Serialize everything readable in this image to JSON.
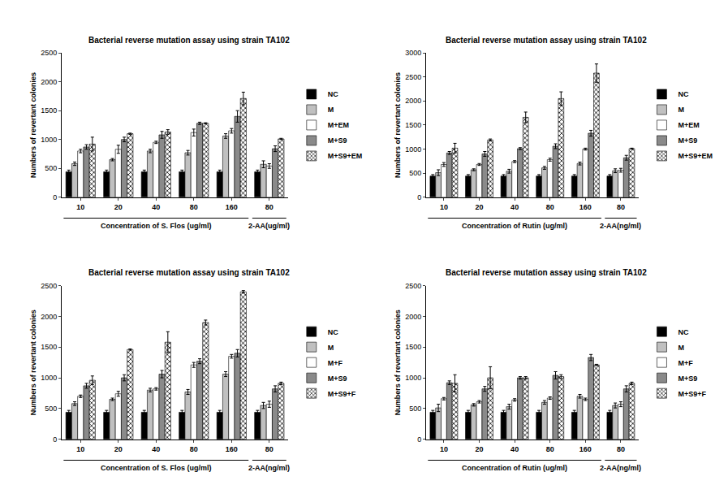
{
  "chart_data": [
    {
      "type": "bar",
      "title": "Bacterial reverse mutation assay using strain TA102",
      "ylabel": "Numbers of revertant colonies",
      "categories": [
        "10",
        "20",
        "40",
        "80",
        "160",
        "80"
      ],
      "x_groups": [
        {
          "label": "Concentration of S. Flos (ug/ml)",
          "count": 5
        },
        {
          "label": "2-AA(ug/ml)",
          "count": 1
        }
      ],
      "ylim": [
        0,
        2500
      ],
      "yticks": [
        0,
        500,
        1000,
        1500,
        2000,
        2500
      ],
      "series": [
        {
          "name": "NC",
          "color": "#000000",
          "values": [
            440,
            440,
            440,
            440,
            440,
            440
          ],
          "errors": [
            30,
            30,
            30,
            30,
            30,
            30
          ]
        },
        {
          "name": "M",
          "color": "#c0c0c0",
          "values": [
            580,
            650,
            800,
            770,
            1060,
            570
          ],
          "errors": [
            30,
            20,
            30,
            40,
            40,
            60
          ]
        },
        {
          "name": "M+EM",
          "color": "#ffffff",
          "values": [
            800,
            830,
            950,
            1120,
            1150,
            540
          ],
          "errors": [
            30,
            70,
            20,
            60,
            40,
            40
          ]
        },
        {
          "name": "M+S9",
          "color": "#8a8a8a",
          "values": [
            870,
            1000,
            1080,
            1280,
            1400,
            840
          ],
          "errors": [
            40,
            40,
            60,
            20,
            100,
            50
          ]
        },
        {
          "name": "M+S9+EM",
          "color": "#ffffff",
          "marker": "crosshatch",
          "values": [
            920,
            1100,
            1130,
            1280,
            1710,
            1010
          ],
          "errors": [
            120,
            10,
            40,
            10,
            110,
            10
          ]
        }
      ]
    },
    {
      "type": "bar",
      "title": "Bacterial reverse mutation assay using strain TA102",
      "ylabel": "Numbers of revertant colonies",
      "categories": [
        "10",
        "20",
        "40",
        "80",
        "160",
        "80"
      ],
      "x_groups": [
        {
          "label": "Concentration of Rutin (ug/ml)",
          "count": 5
        },
        {
          "label": "2-AA(ng/ml)",
          "count": 1
        }
      ],
      "ylim": [
        0,
        3000
      ],
      "yticks": [
        0,
        500,
        1000,
        1500,
        2000,
        2500,
        3000
      ],
      "series": [
        {
          "name": "NC",
          "color": "#000000",
          "values": [
            440,
            440,
            440,
            440,
            440,
            440
          ],
          "errors": [
            30,
            30,
            30,
            30,
            30,
            30
          ]
        },
        {
          "name": "M",
          "color": "#c0c0c0",
          "values": [
            510,
            570,
            540,
            610,
            700,
            550
          ],
          "errors": [
            60,
            20,
            40,
            30,
            30,
            40
          ]
        },
        {
          "name": "M+EM",
          "color": "#ffffff",
          "values": [
            680,
            680,
            740,
            780,
            1000,
            560
          ],
          "errors": [
            40,
            20,
            20,
            30,
            20,
            40
          ]
        },
        {
          "name": "M+S9",
          "color": "#8a8a8a",
          "values": [
            920,
            900,
            1010,
            1060,
            1330,
            820
          ],
          "errors": [
            30,
            50,
            20,
            50,
            60,
            50
          ]
        },
        {
          "name": "M+S9+EM",
          "color": "#ffffff",
          "marker": "crosshatch",
          "values": [
            1020,
            1190,
            1660,
            2050,
            2580,
            1010
          ],
          "errors": [
            100,
            20,
            110,
            140,
            190,
            10
          ]
        }
      ]
    },
    {
      "type": "bar",
      "title": "Bacterial reverse mutation assay using strain TA102",
      "ylabel": "Numbers of revertant colonies",
      "categories": [
        "10",
        "20",
        "40",
        "80",
        "160",
        "80"
      ],
      "x_groups": [
        {
          "label": "Concentration of S. Flos (ug/ml)",
          "count": 5
        },
        {
          "label": "2-AA(ng/ml)",
          "count": 1
        }
      ],
      "ylim": [
        0,
        2500
      ],
      "yticks": [
        0,
        500,
        1000,
        1500,
        2000,
        2500
      ],
      "series": [
        {
          "name": "NC",
          "color": "#000000",
          "values": [
            440,
            440,
            440,
            440,
            440,
            440
          ],
          "errors": [
            30,
            30,
            30,
            30,
            30,
            30
          ]
        },
        {
          "name": "M",
          "color": "#c0c0c0",
          "values": [
            580,
            650,
            800,
            770,
            1060,
            550
          ],
          "errors": [
            30,
            20,
            30,
            40,
            40,
            50
          ]
        },
        {
          "name": "M+F",
          "color": "#ffffff",
          "values": [
            700,
            740,
            820,
            1210,
            1350,
            570
          ],
          "errors": [
            20,
            40,
            20,
            40,
            30,
            50
          ]
        },
        {
          "name": "M+S9",
          "color": "#8a8a8a",
          "values": [
            870,
            1000,
            1060,
            1270,
            1400,
            820
          ],
          "errors": [
            40,
            50,
            60,
            40,
            60,
            50
          ]
        },
        {
          "name": "M+S9+F",
          "color": "#ffffff",
          "marker": "crosshatch",
          "values": [
            960,
            1460,
            1580,
            1900,
            2400,
            910
          ],
          "errors": [
            70,
            10,
            170,
            40,
            20,
            20
          ]
        }
      ]
    },
    {
      "type": "bar",
      "title": "Bacterial reverse mutation assay using strain TA102",
      "ylabel": "Numbers of revertant colonies",
      "categories": [
        "10",
        "20",
        "40",
        "80",
        "160",
        "80"
      ],
      "x_groups": [
        {
          "label": "Concentration of Rutin (ug/ml)",
          "count": 5
        },
        {
          "label": "2-AA(ng/ml)",
          "count": 1
        }
      ],
      "ylim": [
        0,
        2500
      ],
      "yticks": [
        0,
        500,
        1000,
        1500,
        2000,
        2500
      ],
      "series": [
        {
          "name": "NC",
          "color": "#000000",
          "values": [
            440,
            440,
            440,
            440,
            440,
            440
          ],
          "errors": [
            30,
            30,
            30,
            30,
            30,
            30
          ]
        },
        {
          "name": "M",
          "color": "#c0c0c0",
          "values": [
            510,
            560,
            530,
            600,
            700,
            550
          ],
          "errors": [
            60,
            20,
            40,
            30,
            30,
            40
          ]
        },
        {
          "name": "M+F",
          "color": "#ffffff",
          "values": [
            660,
            610,
            640,
            670,
            650,
            570
          ],
          "errors": [
            20,
            20,
            20,
            20,
            20,
            40
          ]
        },
        {
          "name": "M+S9",
          "color": "#8a8a8a",
          "values": [
            920,
            820,
            1000,
            1040,
            1330,
            820
          ],
          "errors": [
            30,
            40,
            20,
            60,
            50,
            50
          ]
        },
        {
          "name": "M+S9+F",
          "color": "#ffffff",
          "marker": "crosshatch",
          "values": [
            910,
            1000,
            1000,
            1020,
            1210,
            910
          ],
          "errors": [
            140,
            180,
            20,
            30,
            10,
            20
          ]
        }
      ]
    }
  ]
}
